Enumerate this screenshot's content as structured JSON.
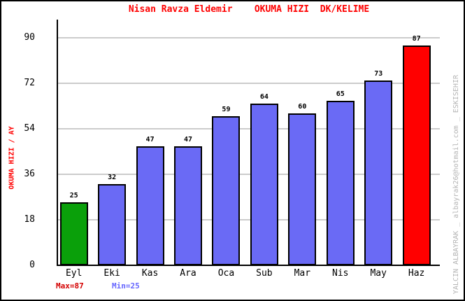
{
  "title": "Nisan Ravza Eldemir    OKUMA HIZI  DK/KELIME",
  "watermark": "YALCIN ALBAYRAK _ albayrak26@hotmail.com _ ESKISEHIR",
  "footer": {
    "max_label": "Max=87",
    "min_label": "Min=25"
  },
  "colors": {
    "title": "#ff0000",
    "axis_title": "#ff0000",
    "max_label": "#d40000",
    "min_label": "#6666ff",
    "bar_default": "#6a6af5",
    "bar_first": "#0aa00a",
    "bar_last": "#ff0000",
    "bar_border": "#000000",
    "grid": "#cccccc",
    "axis": "#000000",
    "watermark": "#b4b4b4"
  },
  "chart_data": {
    "type": "bar",
    "title": "Nisan Ravza Eldemir    OKUMA HIZI  DK/KELIME",
    "xlabel": "",
    "ylabel": "OKUMA HIZI / AY",
    "categories": [
      "Eyl",
      "Eki",
      "Kas",
      "Ara",
      "Oca",
      "Sub",
      "Mar",
      "Nis",
      "May",
      "Haz"
    ],
    "values": [
      25,
      32,
      47,
      47,
      59,
      64,
      60,
      65,
      73,
      87
    ],
    "yticks": [
      0,
      18,
      36,
      54,
      72,
      90
    ],
    "ylim": [
      0,
      97
    ],
    "grid": true,
    "legend": false,
    "annotations": [
      "Max=87",
      "Min=25"
    ],
    "first_bar_highlight": "min (green)",
    "last_bar_highlight": "max (red)"
  }
}
